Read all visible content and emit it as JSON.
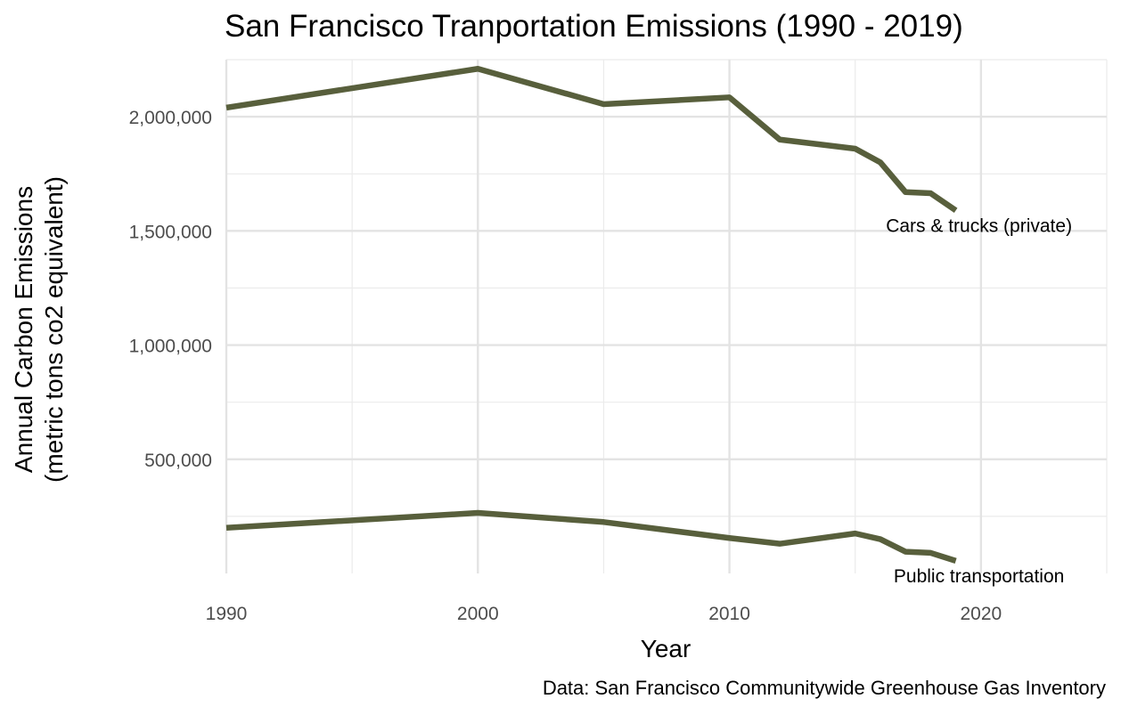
{
  "chart_data": {
    "type": "line",
    "title": "San Francisco Tranportation Emissions (1990 - 2019)",
    "xlabel": "Year",
    "ylabel": [
      "Annual Carbon Emissions",
      "(metric tons co2 equivalent)"
    ],
    "caption": "Data: San Francisco Communitywide Greenhouse Gas Inventory",
    "xlim": [
      1990,
      2025
    ],
    "ylim": [
      0,
      2250000
    ],
    "x_ticks": [
      1990,
      2000,
      2010,
      2020
    ],
    "x_tick_labels": [
      "1990",
      "2000",
      "2010",
      "2020"
    ],
    "y_ticks": [
      500000,
      1000000,
      1500000,
      2000000
    ],
    "y_tick_labels": [
      "500,000",
      "1,000,000",
      "1,500,000",
      "2,000,000"
    ],
    "grid": true,
    "line_color": "#585f3c",
    "series": [
      {
        "name": "Cars & trucks (private)",
        "x": [
          1990,
          2000,
          2005,
          2010,
          2012,
          2015,
          2016,
          2017,
          2018,
          2019
        ],
        "values": [
          2040000,
          2210000,
          2055000,
          2085000,
          1900000,
          1860000,
          1800000,
          1670000,
          1665000,
          1590000
        ]
      },
      {
        "name": "Public transportation",
        "x": [
          1990,
          2000,
          2005,
          2010,
          2012,
          2015,
          2016,
          2017,
          2018,
          2019
        ],
        "values": [
          200000,
          265000,
          225000,
          155000,
          130000,
          175000,
          150000,
          95000,
          90000,
          55000
        ]
      }
    ]
  }
}
